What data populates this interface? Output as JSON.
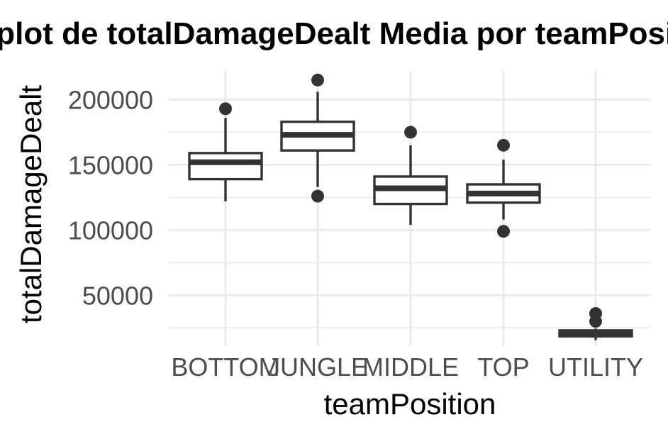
{
  "chart_data": {
    "type": "box",
    "title": "Boxplot de totalDamageDealt Media por teamPosition",
    "xlabel": "teamPosition",
    "ylabel": "totalDamageDealt",
    "ylim": [
      11000,
      222000
    ],
    "yticks": [
      50000,
      100000,
      150000,
      200000
    ],
    "yminor": [
      25000,
      75000,
      125000,
      175000
    ],
    "grid": true,
    "legend": "none",
    "categories": [
      "BOTTOM",
      "JUNGLE",
      "MIDDLE",
      "TOP",
      "UTILITY"
    ],
    "boxes": [
      {
        "category": "BOTTOM",
        "whisker_low": 122000,
        "q1": 139000,
        "median": 152000,
        "q3": 159000,
        "whisker_high": 186000,
        "outliers": [
          193000
        ]
      },
      {
        "category": "JUNGLE",
        "whisker_low": 133000,
        "q1": 161000,
        "median": 173000,
        "q3": 183000,
        "whisker_high": 206000,
        "outliers": [
          215000,
          126000
        ]
      },
      {
        "category": "MIDDLE",
        "whisker_low": 104000,
        "q1": 120000,
        "median": 132000,
        "q3": 141000,
        "whisker_high": 165000,
        "outliers": [
          175000
        ]
      },
      {
        "category": "TOP",
        "whisker_low": 108000,
        "q1": 121000,
        "median": 128000,
        "q3": 135000,
        "whisker_high": 154000,
        "outliers": [
          165000,
          99000
        ]
      },
      {
        "category": "UTILITY",
        "whisker_low": 15500,
        "q1": 18500,
        "median": 20500,
        "q3": 23000,
        "whisker_high": 24500,
        "outliers": [
          36000,
          30000
        ]
      }
    ]
  }
}
